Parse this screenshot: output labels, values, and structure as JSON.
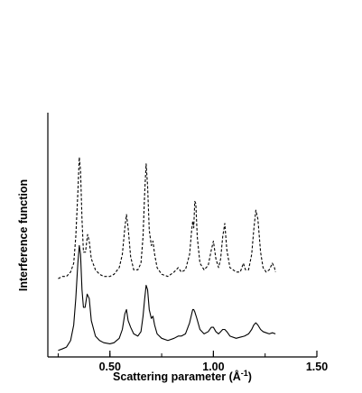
{
  "chart_data": {
    "type": "line",
    "xlabel": "Scattering parameter (Å⁻¹)",
    "xlabel_main": "Scattering parameter (Å",
    "xlabel_sup": "-1",
    "xlabel_close": ")",
    "ylabel": "Interference function",
    "xlim": [
      0.2,
      1.5
    ],
    "xticks": [
      0.5,
      1.0,
      1.5
    ],
    "xtick_labels": [
      "0.50",
      "1.00",
      "1.50"
    ],
    "grid": false,
    "legend": "none",
    "y_scale": "arbitrary units (no printed y ticks)",
    "series": [
      {
        "style": "dashed",
        "color": "#000000",
        "points": [
          [
            0.25,
            0.33
          ],
          [
            0.27,
            0.34
          ],
          [
            0.29,
            0.34
          ],
          [
            0.31,
            0.36
          ],
          [
            0.325,
            0.4
          ],
          [
            0.335,
            0.52
          ],
          [
            0.345,
            0.72
          ],
          [
            0.352,
            0.88
          ],
          [
            0.358,
            0.82
          ],
          [
            0.365,
            0.6
          ],
          [
            0.372,
            0.45
          ],
          [
            0.382,
            0.45
          ],
          [
            0.392,
            0.53
          ],
          [
            0.4,
            0.5
          ],
          [
            0.41,
            0.42
          ],
          [
            0.43,
            0.37
          ],
          [
            0.45,
            0.35
          ],
          [
            0.47,
            0.34
          ],
          [
            0.5,
            0.34
          ],
          [
            0.52,
            0.35
          ],
          [
            0.545,
            0.38
          ],
          [
            0.56,
            0.44
          ],
          [
            0.572,
            0.56
          ],
          [
            0.58,
            0.62
          ],
          [
            0.588,
            0.56
          ],
          [
            0.6,
            0.43
          ],
          [
            0.615,
            0.37
          ],
          [
            0.635,
            0.37
          ],
          [
            0.65,
            0.4
          ],
          [
            0.66,
            0.52
          ],
          [
            0.668,
            0.72
          ],
          [
            0.675,
            0.85
          ],
          [
            0.682,
            0.75
          ],
          [
            0.69,
            0.55
          ],
          [
            0.7,
            0.48
          ],
          [
            0.708,
            0.5
          ],
          [
            0.716,
            0.44
          ],
          [
            0.728,
            0.38
          ],
          [
            0.75,
            0.35
          ],
          [
            0.78,
            0.34
          ],
          [
            0.81,
            0.36
          ],
          [
            0.83,
            0.38
          ],
          [
            0.845,
            0.36
          ],
          [
            0.865,
            0.37
          ],
          [
            0.885,
            0.44
          ],
          [
            0.895,
            0.55
          ],
          [
            0.9,
            0.59
          ],
          [
            0.905,
            0.56
          ],
          [
            0.91,
            0.68
          ],
          [
            0.915,
            0.67
          ],
          [
            0.922,
            0.52
          ],
          [
            0.935,
            0.4
          ],
          [
            0.955,
            0.37
          ],
          [
            0.975,
            0.39
          ],
          [
            0.99,
            0.46
          ],
          [
            1.0,
            0.5
          ],
          [
            1.012,
            0.42
          ],
          [
            1.025,
            0.38
          ],
          [
            1.035,
            0.42
          ],
          [
            1.045,
            0.52
          ],
          [
            1.055,
            0.58
          ],
          [
            1.065,
            0.46
          ],
          [
            1.08,
            0.38
          ],
          [
            1.11,
            0.36
          ],
          [
            1.13,
            0.36
          ],
          [
            1.145,
            0.4
          ],
          [
            1.155,
            0.37
          ],
          [
            1.17,
            0.37
          ],
          [
            1.185,
            0.44
          ],
          [
            1.195,
            0.55
          ],
          [
            1.205,
            0.64
          ],
          [
            1.215,
            0.6
          ],
          [
            1.228,
            0.45
          ],
          [
            1.24,
            0.38
          ],
          [
            1.255,
            0.36
          ],
          [
            1.27,
            0.37
          ],
          [
            1.285,
            0.4
          ],
          [
            1.295,
            0.38
          ],
          [
            1.3,
            0.36
          ]
        ]
      },
      {
        "style": "solid",
        "color": "#000000",
        "points": [
          [
            0.25,
            0.005
          ],
          [
            0.27,
            0.012
          ],
          [
            0.29,
            0.02
          ],
          [
            0.31,
            0.05
          ],
          [
            0.325,
            0.12
          ],
          [
            0.335,
            0.24
          ],
          [
            0.345,
            0.4
          ],
          [
            0.352,
            0.48
          ],
          [
            0.358,
            0.44
          ],
          [
            0.365,
            0.28
          ],
          [
            0.372,
            0.2
          ],
          [
            0.38,
            0.2
          ],
          [
            0.39,
            0.26
          ],
          [
            0.4,
            0.24
          ],
          [
            0.41,
            0.14
          ],
          [
            0.43,
            0.07
          ],
          [
            0.45,
            0.05
          ],
          [
            0.47,
            0.04
          ],
          [
            0.5,
            0.035
          ],
          [
            0.52,
            0.04
          ],
          [
            0.545,
            0.06
          ],
          [
            0.56,
            0.1
          ],
          [
            0.572,
            0.17
          ],
          [
            0.58,
            0.19
          ],
          [
            0.588,
            0.14
          ],
          [
            0.6,
            0.11
          ],
          [
            0.615,
            0.08
          ],
          [
            0.635,
            0.07
          ],
          [
            0.65,
            0.09
          ],
          [
            0.66,
            0.16
          ],
          [
            0.668,
            0.24
          ],
          [
            0.675,
            0.3
          ],
          [
            0.682,
            0.28
          ],
          [
            0.69,
            0.19
          ],
          [
            0.7,
            0.15
          ],
          [
            0.708,
            0.16
          ],
          [
            0.716,
            0.12
          ],
          [
            0.728,
            0.08
          ],
          [
            0.75,
            0.06
          ],
          [
            0.78,
            0.05
          ],
          [
            0.81,
            0.06
          ],
          [
            0.83,
            0.07
          ],
          [
            0.845,
            0.07
          ],
          [
            0.865,
            0.08
          ],
          [
            0.885,
            0.13
          ],
          [
            0.895,
            0.17
          ],
          [
            0.9,
            0.19
          ],
          [
            0.905,
            0.19
          ],
          [
            0.91,
            0.18
          ],
          [
            0.92,
            0.15
          ],
          [
            0.935,
            0.1
          ],
          [
            0.955,
            0.08
          ],
          [
            0.975,
            0.09
          ],
          [
            0.99,
            0.11
          ],
          [
            1.0,
            0.11
          ],
          [
            1.012,
            0.09
          ],
          [
            1.025,
            0.08
          ],
          [
            1.035,
            0.09
          ],
          [
            1.045,
            0.1
          ],
          [
            1.055,
            0.1
          ],
          [
            1.065,
            0.09
          ],
          [
            1.08,
            0.07
          ],
          [
            1.11,
            0.06
          ],
          [
            1.13,
            0.065
          ],
          [
            1.15,
            0.07
          ],
          [
            1.17,
            0.08
          ],
          [
            1.185,
            0.1
          ],
          [
            1.195,
            0.12
          ],
          [
            1.205,
            0.13
          ],
          [
            1.215,
            0.12
          ],
          [
            1.228,
            0.1
          ],
          [
            1.24,
            0.09
          ],
          [
            1.255,
            0.085
          ],
          [
            1.27,
            0.08
          ],
          [
            1.285,
            0.085
          ],
          [
            1.3,
            0.08
          ]
        ]
      }
    ]
  }
}
